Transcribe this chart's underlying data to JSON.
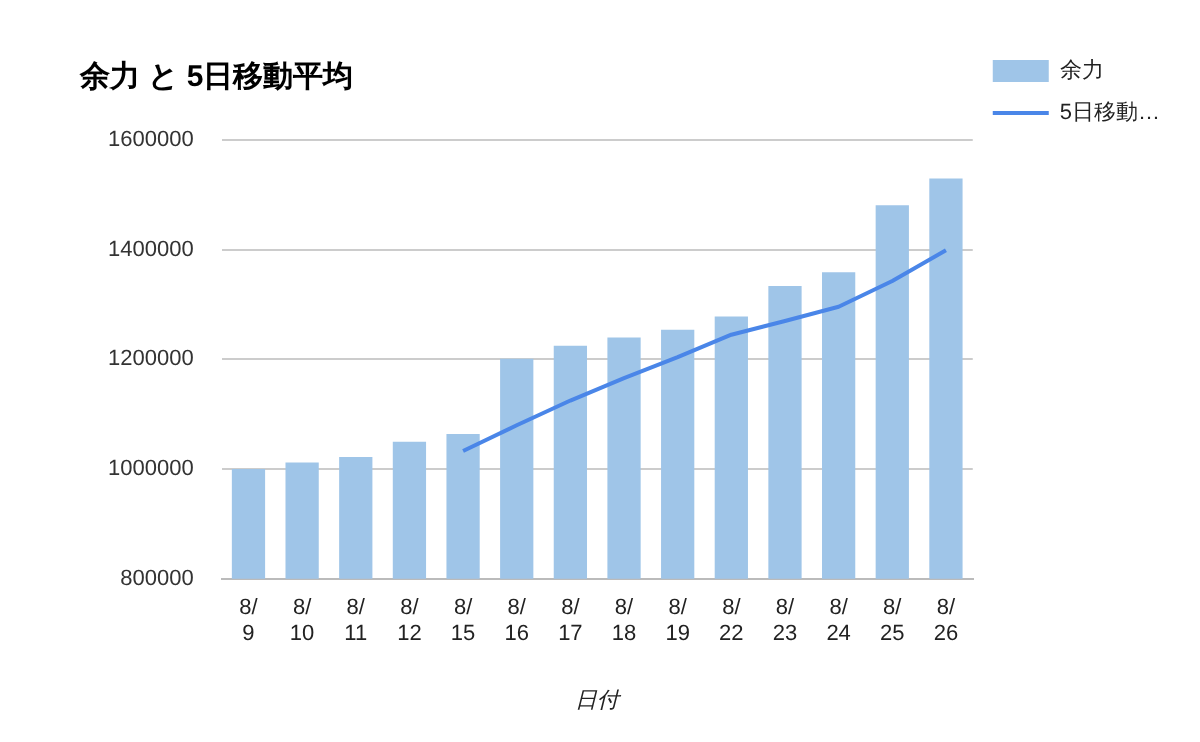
{
  "chart_data": {
    "type": "bar",
    "title": "余力 と 5日移動平均",
    "xlabel": "日付",
    "categories": [
      "8/9",
      "8/10",
      "8/11",
      "8/12",
      "8/15",
      "8/16",
      "8/17",
      "8/18",
      "8/19",
      "8/22",
      "8/23",
      "8/24",
      "8/25",
      "8/26"
    ],
    "series": [
      {
        "name": "余力",
        "color": "#9fc5e8",
        "values": [
          1000000,
          1012000,
          1022000,
          1050000,
          1064000,
          1201000,
          1225000,
          1240000,
          1254000,
          1278000,
          1334000,
          1359000,
          1481000,
          1530000
        ]
      },
      {
        "name": "5日移動…",
        "type": "line",
        "color": "#4a86e8",
        "values": [
          null,
          null,
          null,
          null,
          1033000,
          1080000,
          1125000,
          1166000,
          1204000,
          1245000,
          1270000,
          1296000,
          1343000,
          1399000
        ]
      }
    ],
    "ylim": [
      800000,
      1600000
    ],
    "yticks": [
      800000,
      1000000,
      1200000,
      1400000,
      1600000
    ],
    "grid": "y",
    "legend": "right",
    "marker": "none"
  }
}
